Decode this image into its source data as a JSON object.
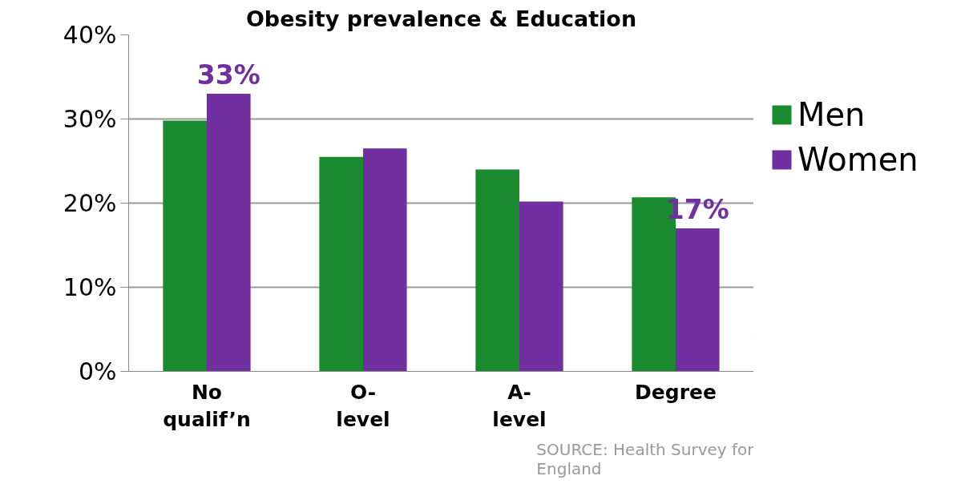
{
  "chart_data": {
    "type": "bar",
    "title": "Obesity prevalence & Education",
    "categories": [
      "No\nqualif’n",
      "O-\nlevel",
      "A-\nlevel",
      "Degree"
    ],
    "series": [
      {
        "name": "Men",
        "color": "#1a8a2e",
        "values": [
          29.8,
          25.5,
          24,
          20.7
        ]
      },
      {
        "name": "Women",
        "color": "#7030a0",
        "values": [
          33,
          26.5,
          20.2,
          17
        ],
        "value_labels": [
          "33%",
          null,
          null,
          "17%"
        ]
      }
    ],
    "ylim": [
      0,
      40
    ],
    "yticks": [
      {
        "value": 0,
        "label": "0%"
      },
      {
        "value": 10,
        "label": "10%"
      },
      {
        "value": 20,
        "label": "20%"
      },
      {
        "value": 30,
        "label": "30%"
      },
      {
        "value": 40,
        "label": "40%"
      }
    ],
    "grid": "y",
    "legend": "right",
    "annotations": [
      "SOURCE: Health Survey for\nEngland"
    ]
  }
}
